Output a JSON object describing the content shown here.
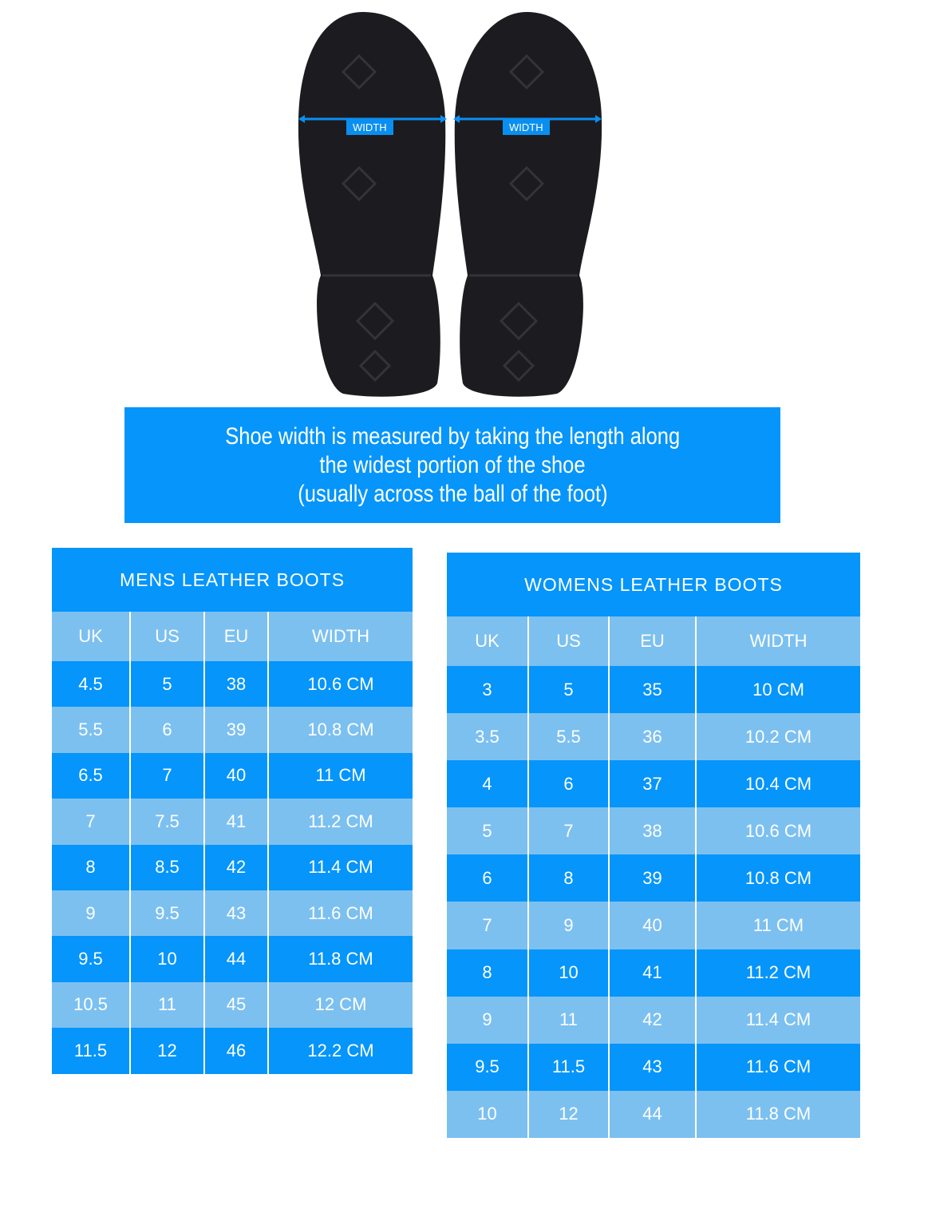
{
  "diagram": {
    "width_label": "WIDTH",
    "colors": {
      "primary": "#0595fb",
      "light": "#7cc0f0",
      "sole": "#1c1c20"
    }
  },
  "banner": {
    "lines": [
      "Shoe width is measured by taking the length along",
      "the widest portion of the shoe",
      "(usually across the ball of the foot)"
    ]
  },
  "mens": {
    "title": "MENS LEATHER BOOTS",
    "headers": [
      "UK",
      "US",
      "EU",
      "WIDTH"
    ],
    "rows": [
      [
        "4.5",
        "5",
        "38",
        "10.6 CM"
      ],
      [
        "5.5",
        "6",
        "39",
        "10.8 CM"
      ],
      [
        "6.5",
        "7",
        "40",
        "11 CM"
      ],
      [
        "7",
        "7.5",
        "41",
        "11.2 CM"
      ],
      [
        "8",
        "8.5",
        "42",
        "11.4 CM"
      ],
      [
        "9",
        "9.5",
        "43",
        "11.6 CM"
      ],
      [
        "9.5",
        "10",
        "44",
        "11.8 CM"
      ],
      [
        "10.5",
        "11",
        "45",
        "12 CM"
      ],
      [
        "11.5",
        "12",
        "46",
        "12.2 CM"
      ]
    ]
  },
  "womens": {
    "title": "WOMENS LEATHER BOOTS",
    "headers": [
      "UK",
      "US",
      "EU",
      "WIDTH"
    ],
    "rows": [
      [
        "3",
        "5",
        "35",
        "10 CM"
      ],
      [
        "3.5",
        "5.5",
        "36",
        "10.2 CM"
      ],
      [
        "4",
        "6",
        "37",
        "10.4 CM"
      ],
      [
        "5",
        "7",
        "38",
        "10.6 CM"
      ],
      [
        "6",
        "8",
        "39",
        "10.8 CM"
      ],
      [
        "7",
        "9",
        "40",
        "11 CM"
      ],
      [
        "8",
        "10",
        "41",
        "11.2 CM"
      ],
      [
        "9",
        "11",
        "42",
        "11.4 CM"
      ],
      [
        "9.5",
        "11.5",
        "43",
        "11.6 CM"
      ],
      [
        "10",
        "12",
        "44",
        "11.8 CM"
      ]
    ]
  }
}
